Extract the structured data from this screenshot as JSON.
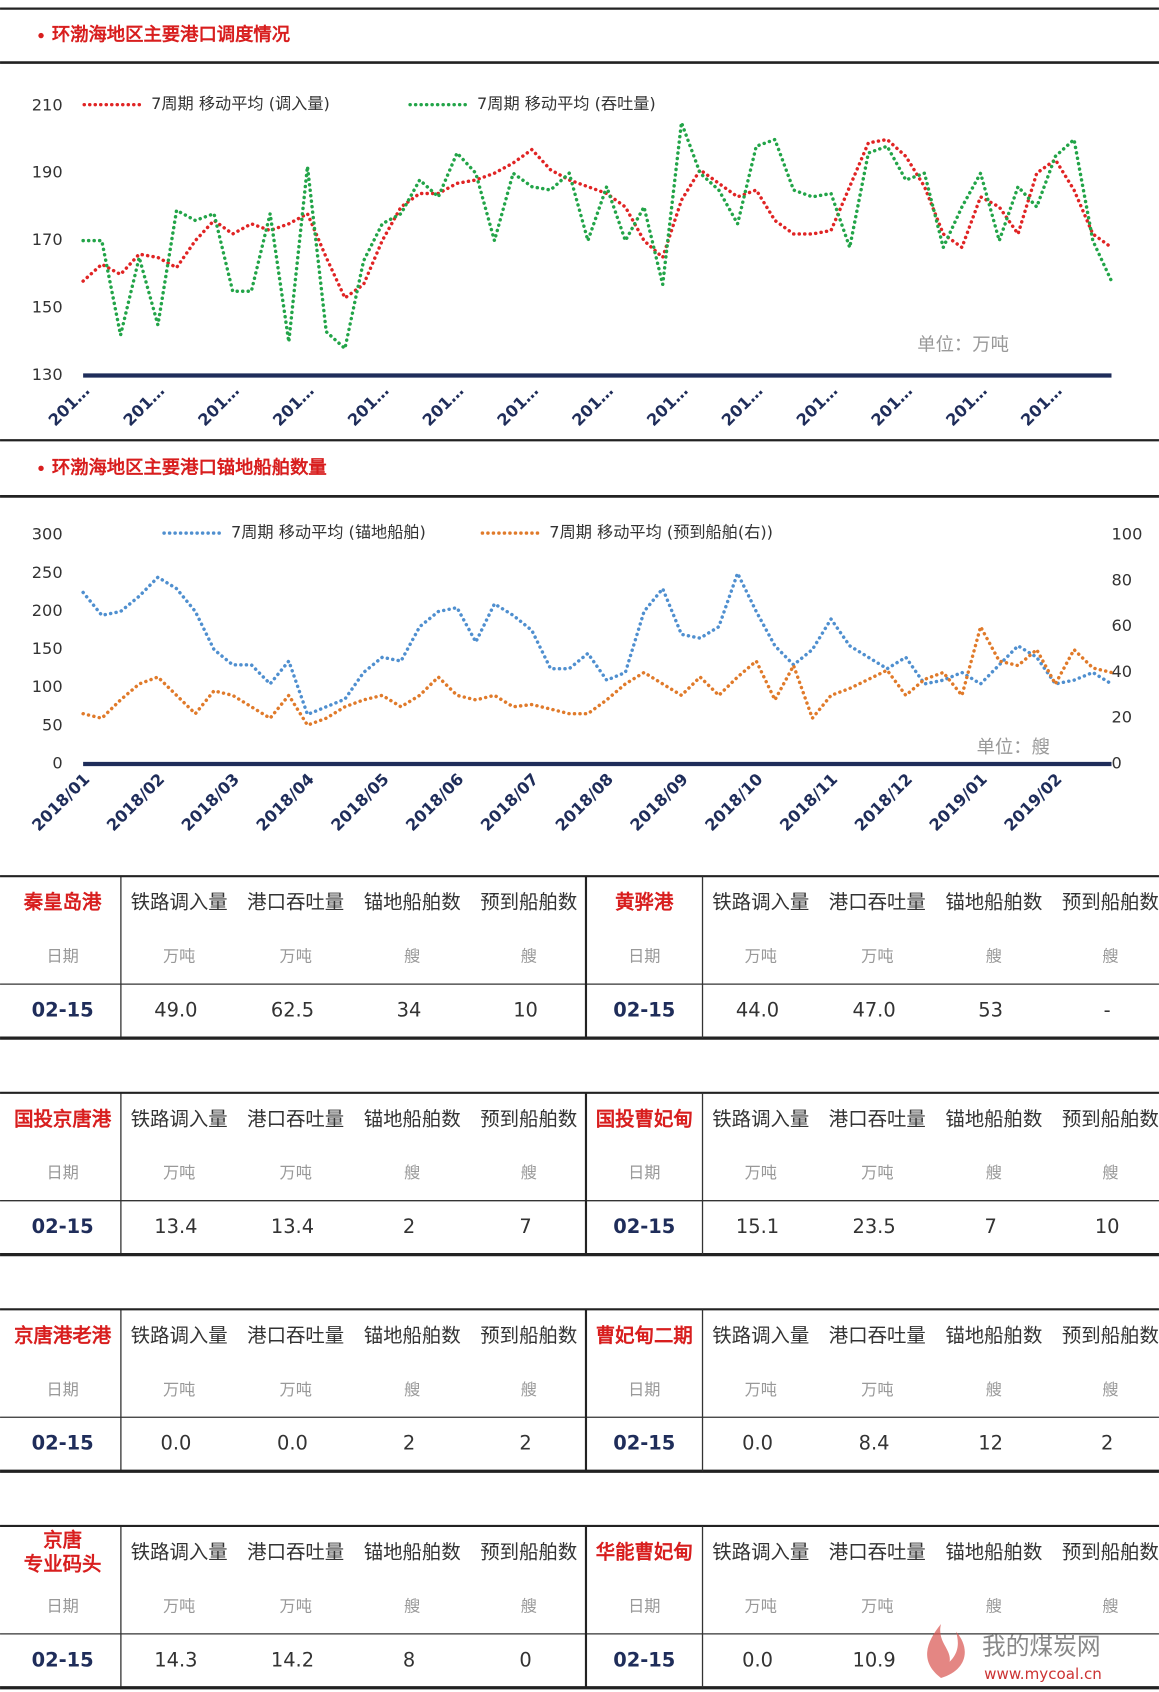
{
  "chart_data": [
    {
      "type": "line",
      "title": "环渤海地区主要港口调度情况",
      "annotation": "单位：万吨",
      "categories": [
        "201…",
        null,
        null,
        null,
        "201…",
        null,
        null,
        null,
        "201…",
        null,
        null,
        null,
        "201…",
        null,
        null,
        null,
        "201…",
        null,
        null,
        null,
        "201…",
        null,
        null,
        null,
        "201…",
        null,
        null,
        null,
        "201…",
        null,
        null,
        null,
        "201…",
        null,
        null,
        null,
        "201…",
        null,
        null,
        null,
        "201…",
        null,
        null,
        null,
        "201…",
        null,
        null,
        null,
        "201…",
        null,
        null,
        null,
        "201…",
        null,
        null,
        null
      ],
      "series": [
        {
          "name": "7周期 移动平均 (调入量)",
          "color": "#e02424",
          "values": [
            158,
            163,
            160,
            166,
            165,
            162,
            170,
            176,
            172,
            175,
            173,
            175,
            178,
            165,
            153,
            157,
            170,
            180,
            184,
            184,
            187,
            188,
            190,
            193,
            197,
            191,
            188,
            186,
            184,
            180,
            170,
            165,
            182,
            191,
            187,
            183,
            185,
            176,
            172,
            172,
            173,
            186,
            199,
            200,
            195,
            186,
            172,
            168,
            183,
            180,
            172,
            190,
            194,
            185,
            172,
            168
          ]
        },
        {
          "name": "7周期 移动平均 (吞吐量)",
          "color": "#22a448",
          "values": [
            170,
            170,
            142,
            165,
            145,
            179,
            176,
            178,
            155,
            155,
            178,
            140,
            192,
            143,
            138,
            164,
            175,
            178,
            188,
            183,
            196,
            190,
            170,
            190,
            186,
            185,
            190,
            170,
            186,
            170,
            180,
            157,
            205,
            190,
            185,
            175,
            198,
            200,
            185,
            183,
            184,
            168,
            196,
            198,
            188,
            190,
            168,
            180,
            190,
            170,
            186,
            180,
            195,
            200,
            170,
            158
          ]
        }
      ],
      "ylim": [
        130,
        210
      ],
      "yticks": [
        130,
        150,
        170,
        190,
        210
      ],
      "legend": "top"
    },
    {
      "type": "line",
      "title": "环渤海地区主要港口锚地船舶数量",
      "annotation": "单位：艘",
      "categories": [
        "2018/01",
        null,
        null,
        null,
        "2018/02",
        null,
        null,
        null,
        "2018/03",
        null,
        null,
        null,
        "2018/04",
        null,
        null,
        null,
        "2018/05",
        null,
        null,
        null,
        "2018/06",
        null,
        null,
        null,
        "2018/07",
        null,
        null,
        null,
        "2018/08",
        null,
        null,
        null,
        "2018/09",
        null,
        null,
        null,
        "2018/10",
        null,
        null,
        null,
        "2018/11",
        null,
        null,
        null,
        "2018/12",
        null,
        null,
        null,
        "2019/01",
        null,
        null,
        null,
        "2019/02",
        null,
        null,
        null
      ],
      "series": [
        {
          "name": "7周期 移动平均 (锚地船舶)",
          "color": "#4f8fcf",
          "values": [
            225,
            195,
            200,
            220,
            245,
            230,
            200,
            150,
            130,
            130,
            105,
            135,
            65,
            75,
            85,
            120,
            140,
            135,
            180,
            200,
            205,
            160,
            210,
            195,
            175,
            125,
            125,
            145,
            110,
            120,
            200,
            230,
            170,
            165,
            180,
            250,
            200,
            155,
            130,
            150,
            190,
            155,
            140,
            125,
            140,
            105,
            110,
            120,
            105,
            130,
            155,
            140,
            105,
            110,
            120,
            105
          ]
        },
        {
          "name": "7周期 移动平均 (预到船舶(右))",
          "color": "#e07a2a",
          "axis": "y2",
          "values": [
            22,
            20,
            28,
            35,
            38,
            30,
            22,
            32,
            30,
            25,
            20,
            30,
            17,
            20,
            25,
            28,
            30,
            25,
            30,
            38,
            30,
            28,
            30,
            25,
            26,
            24,
            22,
            22,
            28,
            35,
            40,
            35,
            30,
            38,
            30,
            38,
            45,
            28,
            43,
            20,
            30,
            33,
            37,
            41,
            30,
            37,
            40,
            30,
            60,
            45,
            43,
            50,
            35,
            50,
            42,
            40
          ]
        }
      ],
      "ylim": [
        0,
        300
      ],
      "yticks": [
        0,
        50,
        100,
        150,
        200,
        250,
        300
      ],
      "y2lim": [
        0,
        100
      ],
      "y2ticks": [
        0,
        20,
        40,
        60,
        80,
        100
      ],
      "legend": "top"
    }
  ],
  "tables": [
    {
      "port": [
        "秦皇岛港"
      ],
      "headers": [
        "铁路调入量",
        "港口吞吐量",
        "锚地船舶数",
        "预到船舶数"
      ],
      "units": [
        "日期",
        "万吨",
        "万吨",
        "艘",
        "艘"
      ],
      "row": [
        "02-15",
        "49.0",
        "62.5",
        "34",
        "10"
      ]
    },
    {
      "port": [
        "黄骅港"
      ],
      "headers": [
        "铁路调入量",
        "港口吞吐量",
        "锚地船舶数",
        "预到船舶数"
      ],
      "units": [
        "日期",
        "万吨",
        "万吨",
        "艘",
        "艘"
      ],
      "row": [
        "02-15",
        "44.0",
        "47.0",
        "53",
        "-"
      ]
    },
    {
      "port": [
        "国投京唐港"
      ],
      "headers": [
        "铁路调入量",
        "港口吞吐量",
        "锚地船舶数",
        "预到船舶数"
      ],
      "units": [
        "日期",
        "万吨",
        "万吨",
        "艘",
        "艘"
      ],
      "row": [
        "02-15",
        "13.4",
        "13.4",
        "2",
        "7"
      ]
    },
    {
      "port": [
        "国投曹妃甸"
      ],
      "headers": [
        "铁路调入量",
        "港口吞吐量",
        "锚地船舶数",
        "预到船舶数"
      ],
      "units": [
        "日期",
        "万吨",
        "万吨",
        "艘",
        "艘"
      ],
      "row": [
        "02-15",
        "15.1",
        "23.5",
        "7",
        "10"
      ]
    },
    {
      "port": [
        "京唐港老港"
      ],
      "headers": [
        "铁路调入量",
        "港口吞吐量",
        "锚地船舶数",
        "预到船舶数"
      ],
      "units": [
        "日期",
        "万吨",
        "万吨",
        "艘",
        "艘"
      ],
      "row": [
        "02-15",
        "0.0",
        "0.0",
        "2",
        "2"
      ]
    },
    {
      "port": [
        "曹妃甸二期"
      ],
      "headers": [
        "铁路调入量",
        "港口吞吐量",
        "锚地船舶数",
        "预到船舶数"
      ],
      "units": [
        "日期",
        "万吨",
        "万吨",
        "艘",
        "艘"
      ],
      "row": [
        "02-15",
        "0.0",
        "8.4",
        "12",
        "2"
      ]
    },
    {
      "port": [
        "京唐",
        "专业码头"
      ],
      "headers": [
        "铁路调入量",
        "港口吞吐量",
        "锚地船舶数",
        "预到船舶数"
      ],
      "units": [
        "日期",
        "万吨",
        "万吨",
        "艘",
        "艘"
      ],
      "row": [
        "02-15",
        "14.3",
        "14.2",
        "8",
        "0"
      ]
    },
    {
      "port": [
        "华能曹妃甸"
      ],
      "headers": [
        "铁路调入量",
        "港口吞吐量",
        "锚地船舶数",
        "预到船舶数"
      ],
      "units": [
        "日期",
        "万吨",
        "万吨",
        "艘",
        "艘"
      ],
      "row": [
        "02-15",
        "0.0",
        "10.9"
      ]
    }
  ],
  "watermark": {
    "name": "我的煤炭网",
    "url": "www.mycoal.cn"
  }
}
